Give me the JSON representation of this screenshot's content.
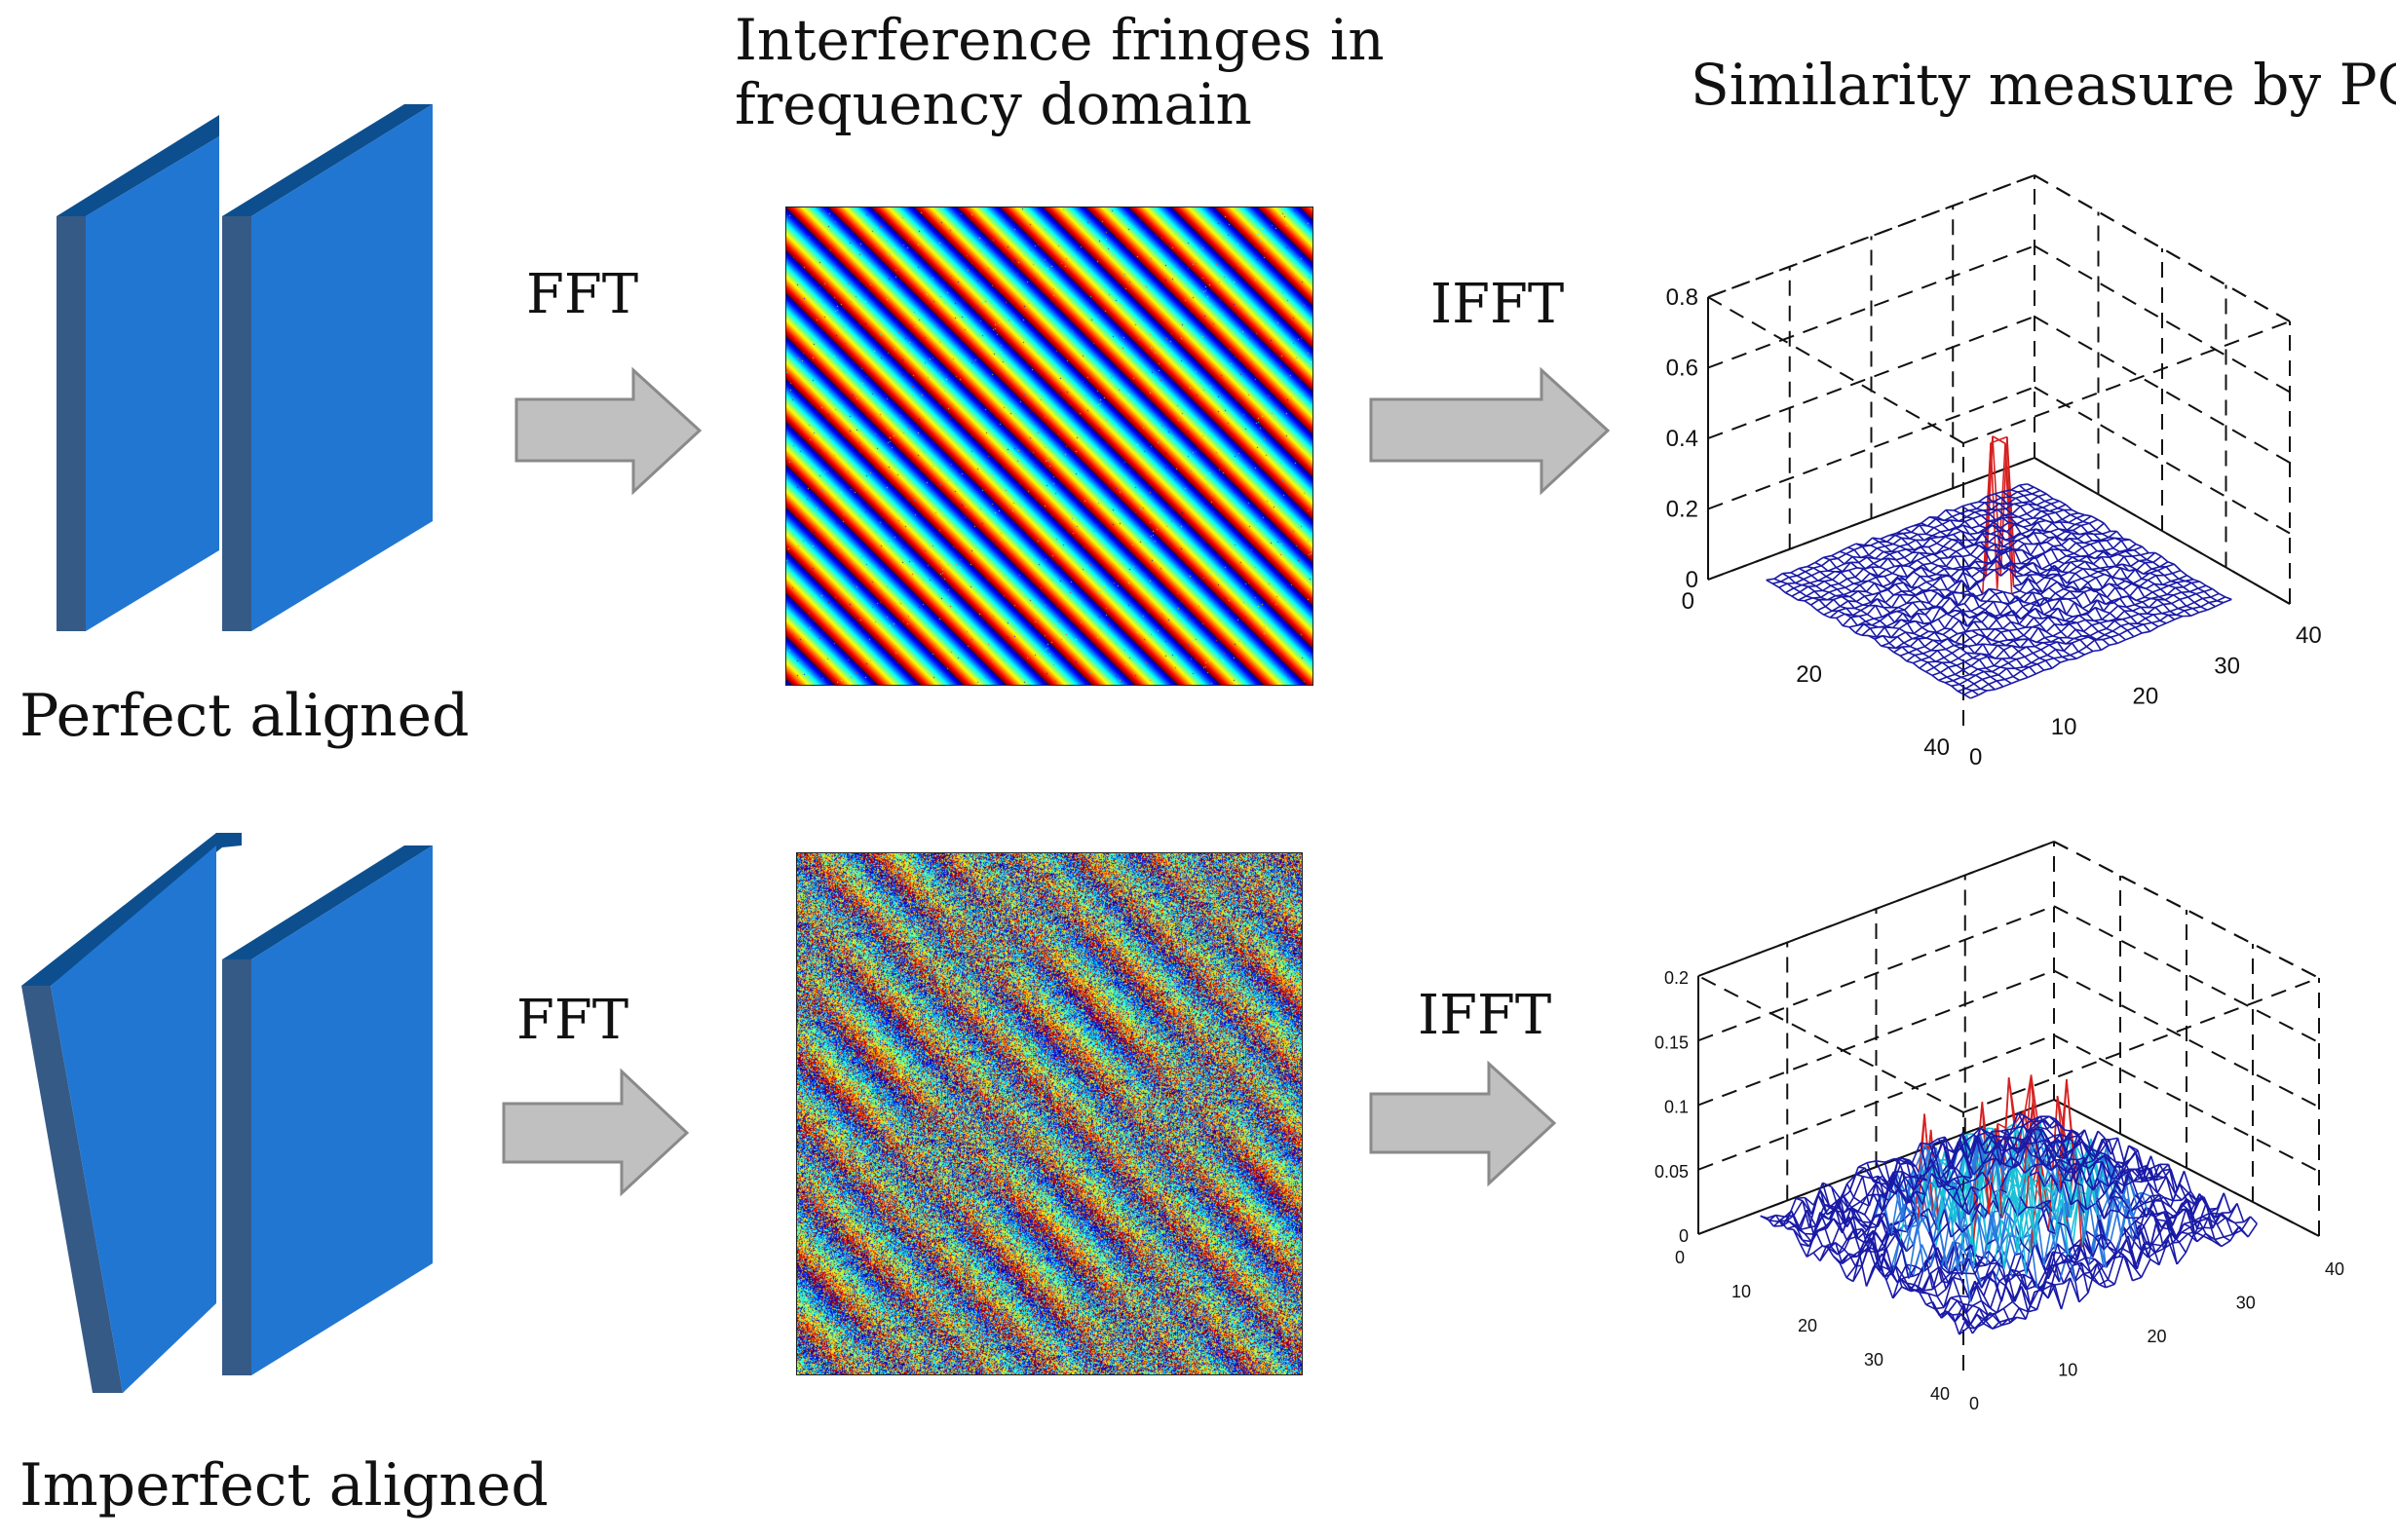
{
  "header": {
    "fringes_title_line1": "Interference fringes in",
    "fringes_title_line2": "frequency domain",
    "pc_title": "Similarity measure by PC"
  },
  "colors": {
    "panel_face": "#2176d2",
    "panel_top": "#0d4f8e",
    "panel_side": "#365a86",
    "arrow_fill": "#c0c0c0",
    "arrow_stroke": "#8a8a8a",
    "mesh_main": "#1a1aa8"
  },
  "rows": [
    {
      "label": "Perfect aligned",
      "fft_label": "FFT",
      "ifft_label": "IFFT",
      "plot": {
        "z_ticks": [
          "0",
          "0.2",
          "0.4",
          "0.6",
          "0.8"
        ],
        "y_ticks": [
          "0",
          "20",
          "40"
        ],
        "x_ticks": [
          "0",
          "10",
          "20",
          "30",
          "40"
        ]
      }
    },
    {
      "label": "Imperfect aligned",
      "fft_label": "FFT",
      "ifft_label": "IFFT",
      "plot": {
        "z_ticks": [
          "0",
          "0.05",
          "0.1",
          "0.15",
          "0.2"
        ],
        "y_ticks": [
          "0",
          "10",
          "20",
          "30",
          "40"
        ],
        "x_ticks": [
          "0",
          "10",
          "20",
          "30",
          "40"
        ]
      }
    }
  ],
  "chart_data": [
    {
      "type": "surface",
      "title": "Similarity measure by PC (perfect aligned)",
      "xlim": [
        0,
        40
      ],
      "ylim": [
        0,
        40
      ],
      "zlim": [
        0,
        0.8
      ],
      "peak": {
        "x": 20,
        "y": 20,
        "z": 0.43
      },
      "noise_floor": 0.02
    },
    {
      "type": "surface",
      "title": "Similarity measure by PC (imperfect aligned)",
      "xlim": [
        0,
        40
      ],
      "ylim": [
        0,
        40
      ],
      "zlim": [
        0,
        0.2
      ],
      "peak": {
        "x": 20,
        "y": 20,
        "z": 0.1
      },
      "noise_floor": 0.06
    }
  ]
}
